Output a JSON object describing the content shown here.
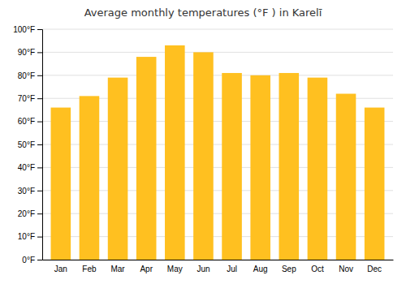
{
  "chart_data": {
    "type": "bar",
    "title": "Average monthly temperatures (°F ) in Karelī",
    "categories": [
      "Jan",
      "Feb",
      "Mar",
      "Apr",
      "May",
      "Jun",
      "Jul",
      "Aug",
      "Sep",
      "Oct",
      "Nov",
      "Dec"
    ],
    "values": [
      66,
      71,
      79,
      88,
      93,
      90,
      81,
      80,
      81,
      79,
      72,
      66
    ],
    "color": "#FFC020",
    "ylim": [
      0,
      100
    ],
    "yticks": [
      {
        "value": 0,
        "label": "0°F"
      },
      {
        "value": 10,
        "label": "10°F"
      },
      {
        "value": 20,
        "label": "20°F"
      },
      {
        "value": 30,
        "label": "30°F"
      },
      {
        "value": 40,
        "label": "40°F"
      },
      {
        "value": 50,
        "label": "50°F"
      },
      {
        "value": 60,
        "label": "60°F"
      },
      {
        "value": 70,
        "label": "70°F"
      },
      {
        "value": 80,
        "label": "80°F"
      },
      {
        "value": 90,
        "label": "90°F"
      },
      {
        "value": 100,
        "label": "100°F"
      }
    ],
    "grid": true
  }
}
